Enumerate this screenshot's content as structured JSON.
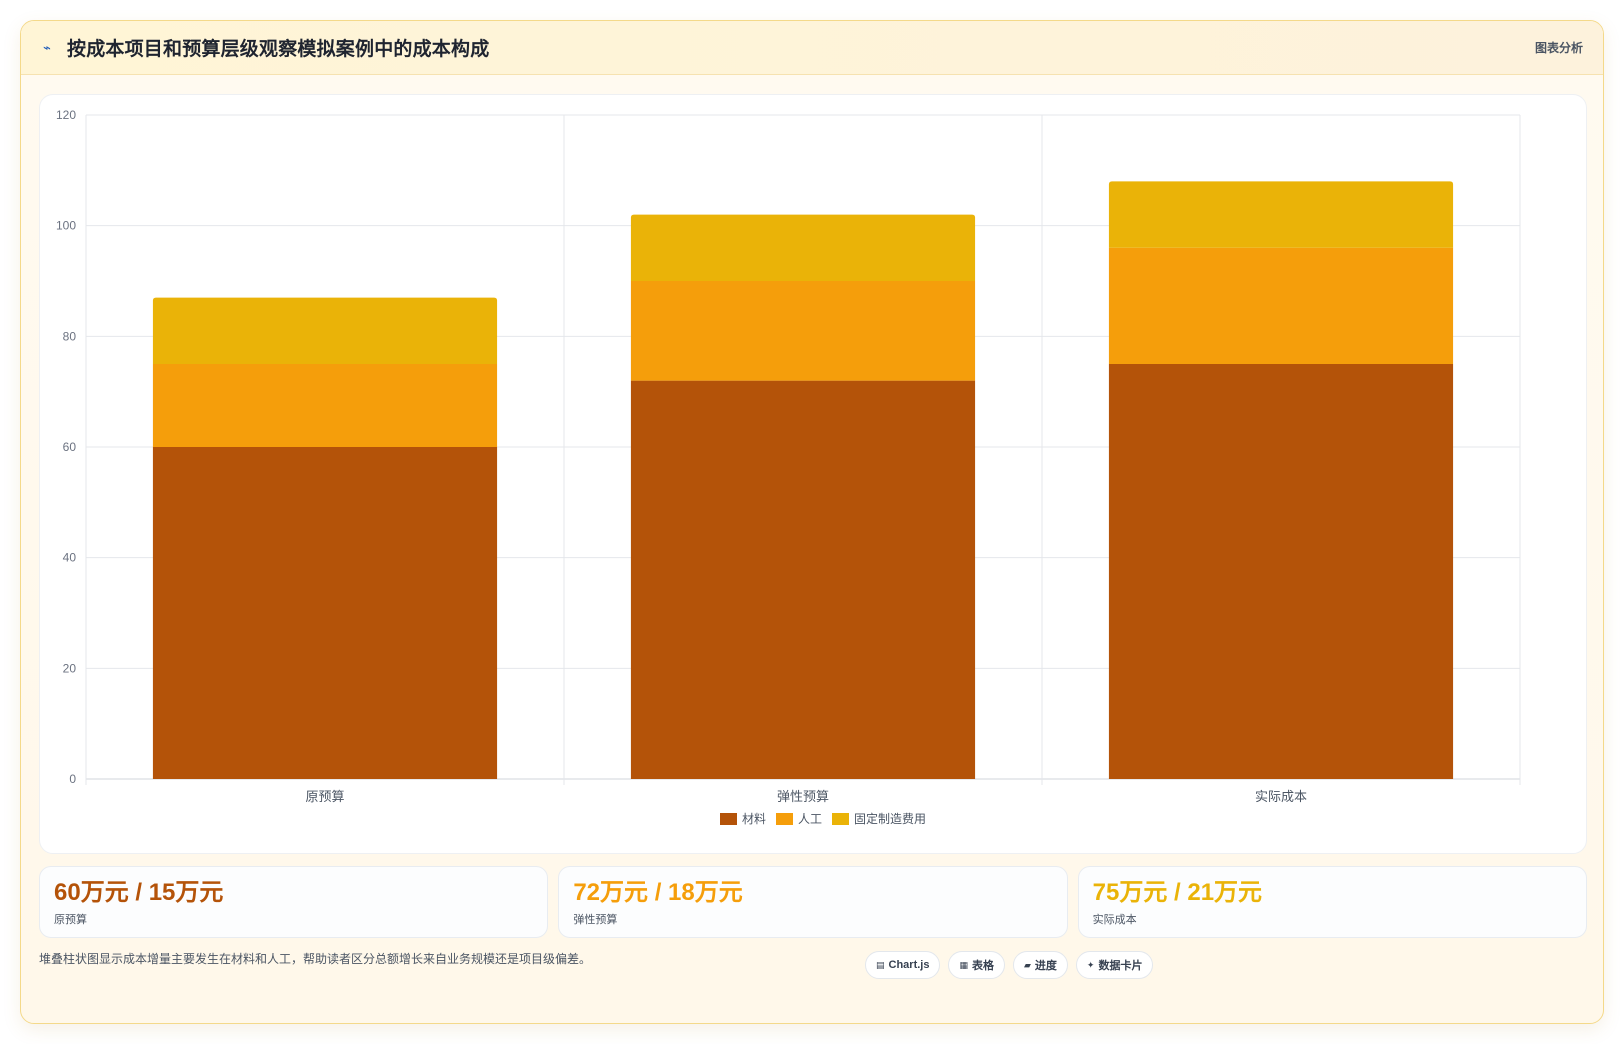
{
  "header": {
    "icon": "line-chart-icon",
    "title": "按成本项目和预算层级观察模拟案例中的成本构成",
    "tag": "图表分析"
  },
  "chart_data": {
    "type": "bar",
    "stacked": true,
    "categories": [
      "原预算",
      "弹性预算",
      "实际成本"
    ],
    "series": [
      {
        "name": "材料",
        "values": [
          60,
          72,
          75
        ],
        "color": "#b45309"
      },
      {
        "name": "人工",
        "values": [
          15,
          18,
          21
        ],
        "color": "#f59e0b"
      },
      {
        "name": "固定制造费用",
        "values": [
          12,
          12,
          12
        ],
        "color": "#eab308"
      }
    ],
    "ylim": [
      0,
      120
    ],
    "yticks": [
      0,
      20,
      40,
      60,
      80,
      100,
      120
    ],
    "grid": true,
    "legend_position": "bottom"
  },
  "stats": [
    {
      "value": "60万元 / 15万元",
      "label": "原预算",
      "color": "#b45309"
    },
    {
      "value": "72万元 / 18万元",
      "label": "弹性预算",
      "color": "#f59e0b"
    },
    {
      "value": "75万元 / 21万元",
      "label": "实际成本",
      "color": "#eab308"
    }
  ],
  "footer": {
    "note": "堆叠柱状图显示成本增量主要发生在材料和人工，帮助读者区分总额增长来自业务规模还是项目级偏差。",
    "chips": [
      {
        "icon": "chart-icon",
        "glyph": "▤",
        "label": "Chart.js"
      },
      {
        "icon": "table-icon",
        "glyph": "▦",
        "label": "表格"
      },
      {
        "icon": "progress-icon",
        "glyph": "▰",
        "label": "进度"
      },
      {
        "icon": "card-icon",
        "glyph": "✦",
        "label": "数据卡片"
      }
    ]
  }
}
